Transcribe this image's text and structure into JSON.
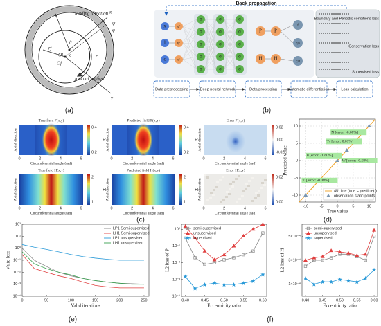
{
  "panels": [
    "(a)",
    "(b)",
    "(c)",
    "(d)",
    "(e)",
    "(f)"
  ],
  "schematic": {
    "labels": [
      "loading direction",
      "journal section",
      "θ",
      "ψ",
      "φ",
      "r",
      "rj",
      "Oj",
      "Ol",
      "e",
      "x",
      "y"
    ]
  },
  "network": {
    "title": "Back propagation",
    "inputs": [
      "x",
      "l",
      "c"
    ],
    "input_maps": [
      "φˣ",
      "ψˡ",
      "cᶜ"
    ],
    "hidden": "σ",
    "outputs": [
      "P",
      "H"
    ],
    "derivatives": [
      "f",
      "ξφ",
      "ξψ"
    ],
    "losses": [
      "Boundary and Periodic conditions loss",
      "Conservation loss",
      "Supervised loss"
    ],
    "steps": [
      "Data preprocessing",
      "Deep neural network",
      "Data processing",
      "Automatic differentiation",
      "Loss calculation"
    ]
  },
  "heatmaps": {
    "titles": [
      "True field P(x,y)",
      "Predicted field P(x,y)",
      "Error P(x,y)",
      "True field H(x,y)",
      "Predicted field H(x,y)",
      "Error H(x,y)"
    ],
    "x_label": "Circumferential angle (rad)",
    "y_label": "Axial direction",
    "x_ticks": [
      "0",
      "2",
      "4",
      "6"
    ],
    "colorbar_labels": [
      "P",
      "H"
    ],
    "colorbar_ticks": [
      [
        "0.4",
        "0.2"
      ],
      [
        "0.4",
        "0.2"
      ],
      [
        "0.02",
        "0.00",
        "-0.02"
      ],
      [
        "2",
        "1"
      ],
      [
        "2",
        "1"
      ],
      [
        "0.02",
        "0.00"
      ]
    ]
  },
  "chart_data": [
    {
      "type": "scatter",
      "x_label": "True value",
      "y_label": "Predicted value",
      "xlim": [
        -12,
        12
      ],
      "ylim": [
        -12,
        12
      ],
      "xticks": [
        -10,
        -5,
        0,
        5,
        10
      ],
      "yticks": [
        -10,
        -5,
        0,
        5,
        10
      ],
      "grid": true,
      "legend": "lower right",
      "reference_line": {
        "name": "45° line (true = predicted)",
        "color": "#f0a020"
      },
      "series": [
        {
          "name": "observation static points",
          "color": "#7a96b0",
          "marker": "triangle",
          "x": [
            -10,
            0,
            3,
            8,
            10
          ],
          "values": [
            -10,
            0,
            3,
            8,
            10
          ]
        }
      ],
      "annotations": [
        "N [error: -0.08%]",
        "Tₛ [error: 0.01%]",
        "θ [error: -1.60%]",
        "W [error: -0.58%]",
        "Tₗ [error: -0.08%]"
      ]
    },
    {
      "type": "line",
      "x_label": "Valid iterations",
      "y_label": "Valid loss",
      "log_y": true,
      "xlim": [
        0,
        260
      ],
      "ylim": [
        0.0001,
        100
      ],
      "xticks": [
        0,
        50,
        100,
        150,
        200,
        250
      ],
      "yticks": [
        {
          "value": 0.0001,
          "label": "10⁻⁴"
        },
        {
          "value": 0.001,
          "label": "10⁻³"
        },
        {
          "value": 0.01,
          "label": "10⁻²"
        },
        {
          "value": 0.1,
          "label": "10⁻¹"
        },
        {
          "value": 1,
          "label": "10⁰"
        },
        {
          "value": 10,
          "label": "10¹"
        },
        {
          "value": 100,
          "label": "10²"
        }
      ],
      "legend": "upper right",
      "x": [
        0,
        25,
        50,
        75,
        100,
        125,
        150,
        175,
        200,
        225,
        250
      ],
      "series": [
        {
          "name": "LP1 Semi-supervised",
          "color": "#888888",
          "values": [
            1,
            0.1,
            0.03,
            0.01,
            0.005,
            0.003,
            0.002,
            0.0015,
            0.0012,
            0.0011,
            0.001
          ]
        },
        {
          "name": "LH1 Semi-supervised",
          "color": "#e04040",
          "values": [
            0.3,
            0.02,
            0.01,
            0.005,
            0.003,
            0.0015,
            0.0008,
            0.0006,
            0.0005,
            0.0005,
            0.0005
          ]
        },
        {
          "name": "LP1 unsupervised",
          "color": "#2a9ad8",
          "values": [
            2,
            1.2,
            0.8,
            0.5,
            0.3,
            0.2,
            0.15,
            0.12,
            0.1,
            0.1,
            0.1
          ]
        },
        {
          "name": "LH1 unsupervised",
          "color": "#3aa050",
          "values": [
            0.5,
            0.05,
            0.02,
            0.01,
            0.006,
            0.003,
            0.002,
            0.0015,
            0.0012,
            0.001,
            0.001
          ]
        }
      ]
    },
    {
      "type": "line",
      "x_label": "Eccentricity ratio",
      "y_label": "L2 loss of P",
      "log_y": true,
      "xlim": [
        0.39,
        0.61
      ],
      "ylim": [
        0.0001,
        2
      ],
      "xticks": [
        {
          "value": 0.4,
          "label": "0.40"
        },
        {
          "value": 0.45,
          "label": "0.45"
        },
        {
          "value": 0.5,
          "label": "0.50"
        },
        {
          "value": 0.55,
          "label": "0.55"
        },
        {
          "value": 0.6,
          "label": "0.60"
        }
      ],
      "yticks": [
        {
          "value": 0.0001,
          "label": "10⁻⁴"
        },
        {
          "value": 0.001,
          "label": "10⁻³"
        },
        {
          "value": 0.01,
          "label": "10⁻²"
        },
        {
          "value": 0.1,
          "label": "10⁻¹"
        },
        {
          "value": 1,
          "label": "10⁰"
        }
      ],
      "legend": "upper left",
      "x": [
        0.4,
        0.425,
        0.45,
        0.475,
        0.5,
        0.525,
        0.55,
        0.575,
        0.6
      ],
      "series": [
        {
          "name": "semi-supervised",
          "color": "#888888",
          "marker": "square",
          "values": [
            0.3,
            0.02,
            0.008,
            0.01,
            0.015,
            0.02,
            0.03,
            0.05,
            0.6
          ]
        },
        {
          "name": "unsupervised",
          "color": "#e04040",
          "marker": "triangle",
          "values": [
            1.5,
            0.3,
            0.05,
            0.015,
            0.03,
            0.1,
            0.4,
            1,
            2
          ]
        },
        {
          "name": "supervised",
          "color": "#2a9ad8",
          "marker": "star",
          "values": [
            0.0015,
            0.0003,
            0.0005,
            0.0006,
            0.0005,
            0.0005,
            0.0006,
            0.0008,
            0.002
          ]
        }
      ]
    },
    {
      "type": "line",
      "x_label": "Eccentricity ratio",
      "y_label": "L2 loss of H",
      "xlim": [
        0.39,
        0.61
      ],
      "ylim": [
        0,
        0.0006
      ],
      "xticks": [
        {
          "value": 0.4,
          "label": "0.40"
        },
        {
          "value": 0.45,
          "label": "0.45"
        },
        {
          "value": 0.5,
          "label": "0.50"
        },
        {
          "value": 0.55,
          "label": "0.55"
        },
        {
          "value": 0.6,
          "label": "0.60"
        }
      ],
      "yticks": [
        {
          "value": 0.0001,
          "label": "1×10⁻⁴"
        },
        {
          "value": 0.0003,
          "label": "3×10⁻⁴"
        },
        {
          "value": 0.0005,
          "label": "5×10⁻⁴"
        }
      ],
      "legend": "upper left",
      "x": [
        0.4,
        0.425,
        0.45,
        0.475,
        0.5,
        0.525,
        0.55,
        0.575,
        0.6
      ],
      "series": [
        {
          "name": "semi-supervised",
          "color": "#888888",
          "marker": "square",
          "values": [
            0.00025,
            0.0003,
            0.0003,
            0.00032,
            0.00035,
            0.00035,
            0.00033,
            0.0003,
            0.0005
          ]
        },
        {
          "name": "unsupervised",
          "color": "#e04040",
          "marker": "triangle",
          "values": [
            0.0003,
            0.00032,
            0.00033,
            0.00038,
            0.00037,
            0.00036,
            0.00034,
            0.00035,
            0.00055
          ]
        },
        {
          "name": "supervised",
          "color": "#2a9ad8",
          "marker": "star",
          "values": [
            0.00015,
            0.0001,
            0.00012,
            0.00012,
            0.00014,
            0.00013,
            0.00012,
            0.00015,
            0.00022
          ]
        }
      ]
    }
  ]
}
